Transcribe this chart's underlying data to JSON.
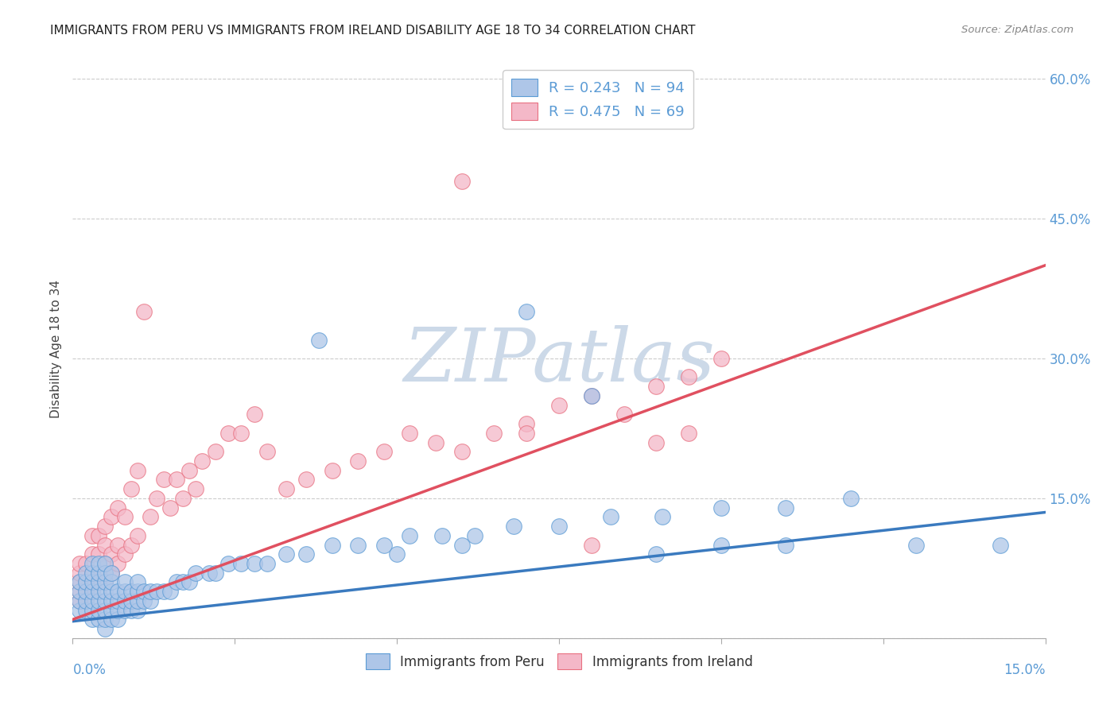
{
  "title": "IMMIGRANTS FROM PERU VS IMMIGRANTS FROM IRELAND DISABILITY AGE 18 TO 34 CORRELATION CHART",
  "source": "Source: ZipAtlas.com",
  "ylabel": "Disability Age 18 to 34",
  "xlim": [
    0.0,
    0.15
  ],
  "ylim": [
    0.0,
    0.62
  ],
  "y_ticks": [
    0.0,
    0.15,
    0.3,
    0.45,
    0.6
  ],
  "y_tick_labels": [
    "",
    "15.0%",
    "30.0%",
    "45.0%",
    "60.0%"
  ],
  "legend1_R": "0.243",
  "legend1_N": "94",
  "legend2_R": "0.475",
  "legend2_N": "69",
  "series1_facecolor": "#aec6e8",
  "series1_edgecolor": "#5b9bd5",
  "series2_facecolor": "#f4b8c8",
  "series2_edgecolor": "#e87080",
  "trendline1_color": "#3a7abf",
  "trendline2_color": "#e05060",
  "watermark": "ZIPatlas",
  "watermark_color": "#ccd9e8",
  "grid_color": "#cccccc",
  "title_color": "#222222",
  "axis_label_color": "#5b9bd5",
  "peru_x": [
    0.001,
    0.001,
    0.001,
    0.001,
    0.002,
    0.002,
    0.002,
    0.002,
    0.002,
    0.003,
    0.003,
    0.003,
    0.003,
    0.003,
    0.003,
    0.003,
    0.004,
    0.004,
    0.004,
    0.004,
    0.004,
    0.004,
    0.004,
    0.005,
    0.005,
    0.005,
    0.005,
    0.005,
    0.005,
    0.005,
    0.005,
    0.006,
    0.006,
    0.006,
    0.006,
    0.006,
    0.006,
    0.007,
    0.007,
    0.007,
    0.007,
    0.008,
    0.008,
    0.008,
    0.008,
    0.009,
    0.009,
    0.009,
    0.01,
    0.01,
    0.01,
    0.01,
    0.011,
    0.011,
    0.012,
    0.012,
    0.013,
    0.014,
    0.015,
    0.016,
    0.017,
    0.018,
    0.019,
    0.021,
    0.022,
    0.024,
    0.026,
    0.028,
    0.03,
    0.033,
    0.036,
    0.04,
    0.044,
    0.048,
    0.052,
    0.057,
    0.062,
    0.068,
    0.075,
    0.083,
    0.091,
    0.1,
    0.11,
    0.12,
    0.038,
    0.05,
    0.06,
    0.07,
    0.08,
    0.09,
    0.1,
    0.11,
    0.13,
    0.143
  ],
  "peru_y": [
    0.03,
    0.04,
    0.05,
    0.06,
    0.03,
    0.04,
    0.05,
    0.06,
    0.07,
    0.02,
    0.03,
    0.04,
    0.05,
    0.06,
    0.07,
    0.08,
    0.02,
    0.03,
    0.04,
    0.05,
    0.06,
    0.07,
    0.08,
    0.01,
    0.02,
    0.03,
    0.04,
    0.05,
    0.06,
    0.07,
    0.08,
    0.02,
    0.03,
    0.04,
    0.05,
    0.06,
    0.07,
    0.02,
    0.03,
    0.04,
    0.05,
    0.03,
    0.04,
    0.05,
    0.06,
    0.03,
    0.04,
    0.05,
    0.03,
    0.04,
    0.05,
    0.06,
    0.04,
    0.05,
    0.04,
    0.05,
    0.05,
    0.05,
    0.05,
    0.06,
    0.06,
    0.06,
    0.07,
    0.07,
    0.07,
    0.08,
    0.08,
    0.08,
    0.08,
    0.09,
    0.09,
    0.1,
    0.1,
    0.1,
    0.11,
    0.11,
    0.11,
    0.12,
    0.12,
    0.13,
    0.13,
    0.14,
    0.14,
    0.15,
    0.32,
    0.09,
    0.1,
    0.35,
    0.26,
    0.09,
    0.1,
    0.1,
    0.1,
    0.1
  ],
  "ireland_x": [
    0.001,
    0.001,
    0.001,
    0.001,
    0.001,
    0.002,
    0.002,
    0.002,
    0.002,
    0.003,
    0.003,
    0.003,
    0.003,
    0.004,
    0.004,
    0.004,
    0.004,
    0.005,
    0.005,
    0.005,
    0.005,
    0.006,
    0.006,
    0.006,
    0.007,
    0.007,
    0.007,
    0.008,
    0.008,
    0.009,
    0.009,
    0.01,
    0.01,
    0.011,
    0.012,
    0.013,
    0.014,
    0.015,
    0.016,
    0.017,
    0.018,
    0.019,
    0.02,
    0.022,
    0.024,
    0.026,
    0.028,
    0.03,
    0.033,
    0.036,
    0.04,
    0.044,
    0.048,
    0.052,
    0.056,
    0.06,
    0.065,
    0.07,
    0.075,
    0.08,
    0.085,
    0.09,
    0.095,
    0.1,
    0.06,
    0.07,
    0.08,
    0.09,
    0.095
  ],
  "ireland_y": [
    0.04,
    0.05,
    0.06,
    0.07,
    0.08,
    0.04,
    0.05,
    0.06,
    0.08,
    0.05,
    0.07,
    0.09,
    0.11,
    0.06,
    0.07,
    0.09,
    0.11,
    0.06,
    0.08,
    0.1,
    0.12,
    0.07,
    0.09,
    0.13,
    0.08,
    0.1,
    0.14,
    0.09,
    0.13,
    0.1,
    0.16,
    0.11,
    0.18,
    0.35,
    0.13,
    0.15,
    0.17,
    0.14,
    0.17,
    0.15,
    0.18,
    0.16,
    0.19,
    0.2,
    0.22,
    0.22,
    0.24,
    0.2,
    0.16,
    0.17,
    0.18,
    0.19,
    0.2,
    0.22,
    0.21,
    0.2,
    0.22,
    0.23,
    0.25,
    0.26,
    0.24,
    0.27,
    0.28,
    0.3,
    0.49,
    0.22,
    0.1,
    0.21,
    0.22
  ]
}
